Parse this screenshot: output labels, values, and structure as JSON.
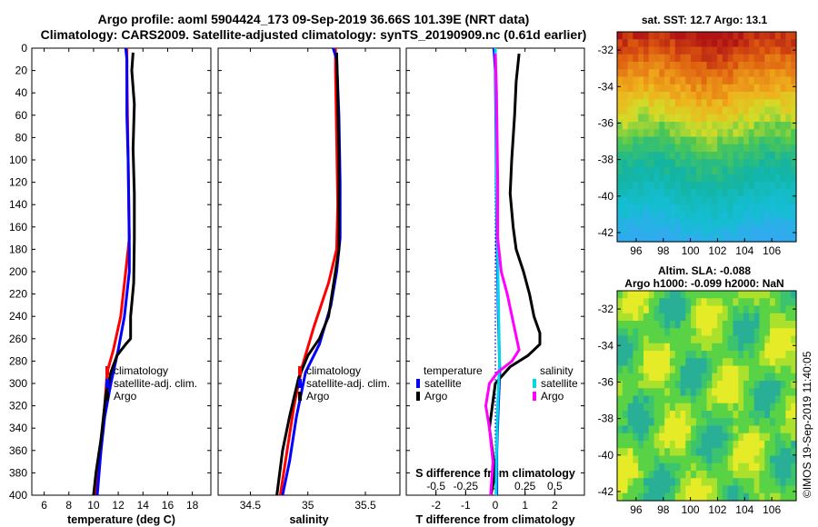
{
  "header": {
    "line1": "Argo profile: aoml 5904424_173 09-Sep-2019 36.66S 101.39E (NRT data)",
    "line2": "Climatology: CARS2009. Satellite-adjusted climatology: synTS_20190909.nc (0.61d earlier)"
  },
  "colors": {
    "climatology": "#ff0000",
    "satellite": "#0000ff",
    "argo": "#000000",
    "sal_satellite": "#00d8e8",
    "sal_argo": "#ff00ff"
  },
  "legend": {
    "climatology": "climatology",
    "satellite_adj": "satellite-adj. clim.",
    "argo": "Argo",
    "temperature_title": "temperature",
    "salinity_title": "salinity",
    "satellite": "satellite"
  },
  "chart_data": [
    {
      "type": "line",
      "title": "",
      "xlabel": "temperature (deg C)",
      "ylabel": "",
      "xlim": [
        5,
        19.5
      ],
      "ylim": [
        400,
        0
      ],
      "xticks": [
        "6",
        "8",
        "10",
        "12",
        "14",
        "16",
        "18"
      ],
      "yticks": [
        "0",
        "20",
        "40",
        "60",
        "80",
        "100",
        "120",
        "140",
        "160",
        "180",
        "200",
        "220",
        "240",
        "260",
        "280",
        "300",
        "320",
        "340",
        "360",
        "380",
        "400"
      ],
      "series": [
        {
          "name": "climatology",
          "color": "#ff0000",
          "points": [
            [
              12.7,
              0
            ],
            [
              12.7,
              20
            ],
            [
              12.75,
              60
            ],
            [
              12.8,
              100
            ],
            [
              12.85,
              140
            ],
            [
              12.9,
              170
            ],
            [
              12.6,
              200
            ],
            [
              12.2,
              240
            ],
            [
              11.6,
              270
            ],
            [
              11.1,
              290
            ],
            [
              10.9,
              320
            ],
            [
              10.6,
              360
            ],
            [
              10.2,
              400
            ]
          ]
        },
        {
          "name": "satellite-adj. clim.",
          "color": "#0000ff",
          "points": [
            [
              12.6,
              0
            ],
            [
              12.7,
              10
            ],
            [
              12.7,
              60
            ],
            [
              12.8,
              100
            ],
            [
              12.85,
              140
            ],
            [
              12.9,
              180
            ],
            [
              12.9,
              200
            ],
            [
              12.5,
              240
            ],
            [
              12.0,
              270
            ],
            [
              11.4,
              300
            ],
            [
              10.9,
              330
            ],
            [
              10.6,
              360
            ],
            [
              10.3,
              400
            ]
          ]
        },
        {
          "name": "Argo",
          "color": "#000000",
          "points": [
            [
              13.2,
              4
            ],
            [
              13.1,
              20
            ],
            [
              13.3,
              50
            ],
            [
              13.2,
              90
            ],
            [
              13.3,
              130
            ],
            [
              13.3,
              170
            ],
            [
              13.25,
              210
            ],
            [
              13.0,
              240
            ],
            [
              13.0,
              260
            ],
            [
              12.6,
              265
            ],
            [
              11.9,
              275
            ],
            [
              11.4,
              290
            ],
            [
              11.0,
              310
            ],
            [
              10.6,
              350
            ],
            [
              10.2,
              380
            ],
            [
              10.0,
              400
            ]
          ]
        }
      ],
      "legend_entries": [
        "climatology",
        "satellite-adj. clim.",
        "Argo"
      ]
    },
    {
      "type": "line",
      "title": "",
      "xlabel": "salinity",
      "ylabel": "",
      "xlim": [
        34.22,
        35.8
      ],
      "ylim": [
        400,
        0
      ],
      "xticks": [
        "34.5",
        "35",
        "35.5"
      ],
      "series": [
        {
          "name": "climatology",
          "color": "#ff0000",
          "points": [
            [
              35.24,
              0
            ],
            [
              35.24,
              20
            ],
            [
              35.25,
              80
            ],
            [
              35.26,
              140
            ],
            [
              35.25,
              180
            ],
            [
              35.18,
              210
            ],
            [
              35.05,
              250
            ],
            [
              34.95,
              285
            ],
            [
              34.88,
              320
            ],
            [
              34.82,
              360
            ],
            [
              34.76,
              400
            ]
          ]
        },
        {
          "name": "satellite-adj. clim.",
          "color": "#0000ff",
          "points": [
            [
              35.22,
              0
            ],
            [
              35.25,
              10
            ],
            [
              35.27,
              60
            ],
            [
              35.28,
              120
            ],
            [
              35.28,
              170
            ],
            [
              35.25,
              200
            ],
            [
              35.2,
              230
            ],
            [
              35.1,
              265
            ],
            [
              34.98,
              290
            ],
            [
              34.9,
              330
            ],
            [
              34.84,
              370
            ],
            [
              34.78,
              400
            ]
          ]
        },
        {
          "name": "Argo",
          "color": "#000000",
          "points": [
            [
              35.25,
              4
            ],
            [
              35.26,
              40
            ],
            [
              35.27,
              100
            ],
            [
              35.27,
              160
            ],
            [
              35.27,
              180
            ],
            [
              35.24,
              200
            ],
            [
              35.18,
              240
            ],
            [
              35.1,
              260
            ],
            [
              35.0,
              275
            ],
            [
              34.92,
              295
            ],
            [
              34.84,
              330
            ],
            [
              34.78,
              360
            ],
            [
              34.73,
              400
            ]
          ]
        }
      ],
      "legend_entries": [
        "climatology",
        "satellite-adj. clim.",
        "Argo"
      ]
    },
    {
      "type": "line",
      "title": "",
      "xlabel": "T difference from climatology",
      "ylabel": "",
      "xlim": [
        -3,
        3
      ],
      "ylim": [
        400,
        0
      ],
      "xticks": [
        "-2",
        "-1",
        "0",
        "1",
        "2"
      ],
      "secondary_axis": {
        "label": "S difference from climatology",
        "ticks": [
          "-0.5",
          "-0.25",
          "0",
          "0.25",
          "0.5"
        ],
        "xlim": [
          -0.75,
          0.75
        ]
      },
      "series": [
        {
          "name": "temperature satellite",
          "color": "#0000ff",
          "axis": "T",
          "points": [
            [
              -0.05,
              0
            ],
            [
              0.0,
              20
            ],
            [
              0.02,
              80
            ],
            [
              0.05,
              160
            ],
            [
              0.1,
              240
            ],
            [
              0.15,
              290
            ],
            [
              0.1,
              320
            ],
            [
              0.05,
              360
            ],
            [
              0.05,
              400
            ]
          ]
        },
        {
          "name": "temperature Argo",
          "color": "#000000",
          "axis": "T",
          "points": [
            [
              0.8,
              5
            ],
            [
              0.7,
              30
            ],
            [
              0.65,
              60
            ],
            [
              0.55,
              100
            ],
            [
              0.5,
              130
            ],
            [
              0.6,
              160
            ],
            [
              0.7,
              180
            ],
            [
              0.95,
              200
            ],
            [
              1.15,
              220
            ],
            [
              1.3,
              240
            ],
            [
              1.5,
              255
            ],
            [
              1.5,
              265
            ],
            [
              1.1,
              275
            ],
            [
              0.5,
              285
            ],
            [
              0.0,
              300
            ],
            [
              -0.1,
              320
            ],
            [
              -0.2,
              340
            ],
            [
              0.0,
              380
            ],
            [
              -0.15,
              400
            ]
          ]
        },
        {
          "name": "salinity satellite",
          "color": "#00d8e8",
          "axis": "S",
          "points": [
            [
              0.0,
              0
            ],
            [
              0.005,
              40
            ],
            [
              0.01,
              100
            ],
            [
              0.015,
              160
            ],
            [
              0.025,
              220
            ],
            [
              0.035,
              280
            ],
            [
              0.02,
              320
            ],
            [
              0.01,
              360
            ],
            [
              0.005,
              400
            ]
          ]
        },
        {
          "name": "salinity Argo",
          "color": "#ff00ff",
          "axis": "S",
          "points": [
            [
              0.0,
              5
            ],
            [
              0.01,
              40
            ],
            [
              0.02,
              120
            ],
            [
              0.02,
              170
            ],
            [
              0.05,
              200
            ],
            [
              0.1,
              220
            ],
            [
              0.14,
              240
            ],
            [
              0.18,
              260
            ],
            [
              0.2,
              270
            ],
            [
              0.14,
              280
            ],
            [
              0.02,
              290
            ],
            [
              -0.05,
              300
            ],
            [
              -0.08,
              320
            ],
            [
              -0.05,
              340
            ],
            [
              -0.02,
              370
            ],
            [
              -0.04,
              400
            ]
          ]
        }
      ],
      "legend_entries": [
        "satellite",
        "Argo",
        "satellite",
        "Argo"
      ]
    },
    {
      "type": "heatmap",
      "title": "sat. SST: 12.7 Argo: 13.1",
      "xticks": [
        "96",
        "98",
        "100",
        "102",
        "104",
        "106"
      ],
      "yticks": [
        "-32",
        "-34",
        "-36",
        "-38",
        "-40",
        "-42"
      ]
    },
    {
      "type": "heatmap",
      "title": "Altim. SLA: -0.088",
      "subtitle": "Argo h1000: -0.099 h2000: NaN",
      "xticks": [
        "96",
        "98",
        "100",
        "102",
        "104",
        "106"
      ],
      "yticks": [
        "-32",
        "-34",
        "-36",
        "-38",
        "-40",
        "-42"
      ]
    }
  ],
  "footer": {
    "credit": "©IMOS 19-Sep-2019 11:40:05"
  }
}
